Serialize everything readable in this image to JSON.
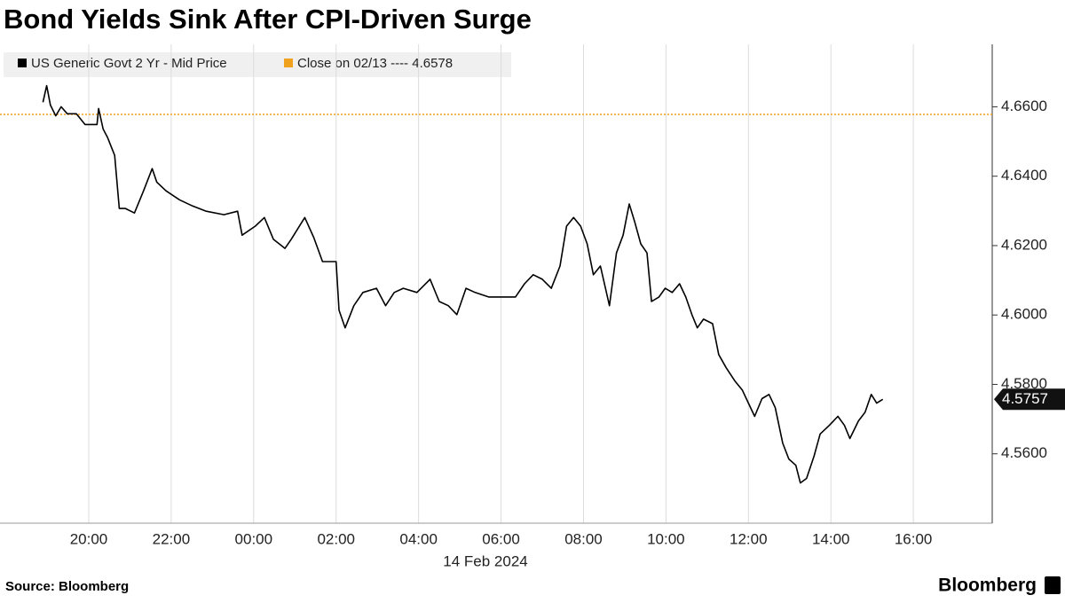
{
  "chart_data": {
    "type": "line",
    "title": "Bond Yields Sink After CPI-Driven Surge",
    "source": "Source: Bloomberg",
    "brand": "Bloomberg",
    "x_sublabel": "14 Feb 2024",
    "x": [
      18.89,
      18.98,
      19.07,
      19.2,
      19.33,
      19.48,
      19.7,
      19.91,
      20.2,
      20.24,
      20.35,
      20.46,
      20.63,
      20.74,
      20.89,
      21.11,
      21.33,
      21.54,
      21.65,
      21.87,
      22.2,
      22.52,
      22.85,
      23.28,
      23.61,
      23.72,
      24.04,
      24.26,
      24.48,
      24.76,
      24.91,
      25.24,
      25.46,
      25.67,
      26.0,
      26.07,
      26.22,
      26.43,
      26.65,
      26.98,
      27.2,
      27.41,
      27.63,
      27.96,
      28.28,
      28.5,
      28.72,
      28.93,
      29.15,
      29.37,
      29.7,
      30.02,
      30.35,
      30.57,
      30.78,
      31.0,
      31.22,
      31.43,
      31.59,
      31.76,
      31.93,
      32.09,
      32.24,
      32.41,
      32.63,
      32.8,
      32.96,
      33.11,
      33.24,
      33.39,
      33.54,
      33.65,
      33.83,
      33.98,
      34.15,
      34.33,
      34.48,
      34.63,
      34.76,
      34.91,
      35.13,
      35.28,
      35.46,
      35.67,
      35.85,
      36.0,
      36.15,
      36.33,
      36.5,
      36.65,
      36.83,
      36.98,
      37.15,
      37.26,
      37.41,
      37.59,
      37.74,
      37.96,
      38.17,
      38.33,
      38.46,
      38.67,
      38.83,
      38.98,
      39.11,
      39.26
    ],
    "series": [
      {
        "name": "US Generic Govt 2 Yr - Mid Price",
        "color": "#000000",
        "values": [
          4.6613,
          4.6661,
          4.6605,
          4.6574,
          4.66,
          4.658,
          4.658,
          4.6549,
          4.6549,
          4.6595,
          4.6536,
          4.6511,
          4.646,
          4.6307,
          4.6307,
          4.6294,
          4.6358,
          4.6422,
          4.6383,
          4.6358,
          4.6332,
          4.6314,
          4.6299,
          4.6289,
          4.6299,
          4.623,
          4.6256,
          4.6281,
          4.6218,
          4.6192,
          4.6218,
          4.6281,
          4.6223,
          4.6154,
          4.6154,
          4.6014,
          4.5963,
          4.6027,
          4.6065,
          4.6077,
          4.6027,
          4.6065,
          4.6077,
          4.6065,
          4.6103,
          4.6039,
          4.6027,
          4.6001,
          4.6077,
          4.6065,
          4.6052,
          4.6052,
          4.6052,
          4.609,
          4.6116,
          4.6103,
          4.6077,
          4.6141,
          4.6256,
          4.6281,
          4.6256,
          4.6205,
          4.6116,
          4.6141,
          4.6027,
          4.6179,
          4.623,
          4.632,
          4.6269,
          4.6205,
          4.6179,
          4.6039,
          4.6052,
          4.6077,
          4.6065,
          4.609,
          4.6052,
          4.6001,
          4.5963,
          4.5988,
          4.5975,
          4.5886,
          4.5848,
          4.581,
          4.5784,
          4.5746,
          4.5708,
          4.5759,
          4.5771,
          4.5733,
          4.5631,
          4.5585,
          4.5567,
          4.5516,
          4.5529,
          4.5593,
          4.5657,
          4.5682,
          4.5708,
          4.5682,
          4.5644,
          4.5695,
          4.572,
          4.5771,
          4.5746,
          4.5757
        ]
      }
    ],
    "reference_line": {
      "label": "Close on 02/13 ---- 4.6578",
      "value": 4.6578,
      "color": "#f0a21e"
    },
    "xlim": [
      17.848,
      41.913
    ],
    "xticks": [
      {
        "value": 20,
        "label": "20:00"
      },
      {
        "value": 22,
        "label": "22:00"
      },
      {
        "value": 24,
        "label": "00:00"
      },
      {
        "value": 26,
        "label": "02:00"
      },
      {
        "value": 28,
        "label": "04:00"
      },
      {
        "value": 30,
        "label": "06:00"
      },
      {
        "value": 32,
        "label": "08:00"
      },
      {
        "value": 34,
        "label": "10:00"
      },
      {
        "value": 36,
        "label": "12:00"
      },
      {
        "value": 38,
        "label": "14:00"
      },
      {
        "value": 40,
        "label": "16:00"
      }
    ],
    "ylim": [
      4.54,
      4.678
    ],
    "yticks": [
      {
        "value": 4.56,
        "label": "4.5600"
      },
      {
        "value": 4.58,
        "label": "4.5800"
      },
      {
        "value": 4.6,
        "label": "4.6000"
      },
      {
        "value": 4.62,
        "label": "4.6200"
      },
      {
        "value": 4.64,
        "label": "4.6400"
      },
      {
        "value": 4.66,
        "label": "4.6600"
      }
    ],
    "grid": true
  }
}
